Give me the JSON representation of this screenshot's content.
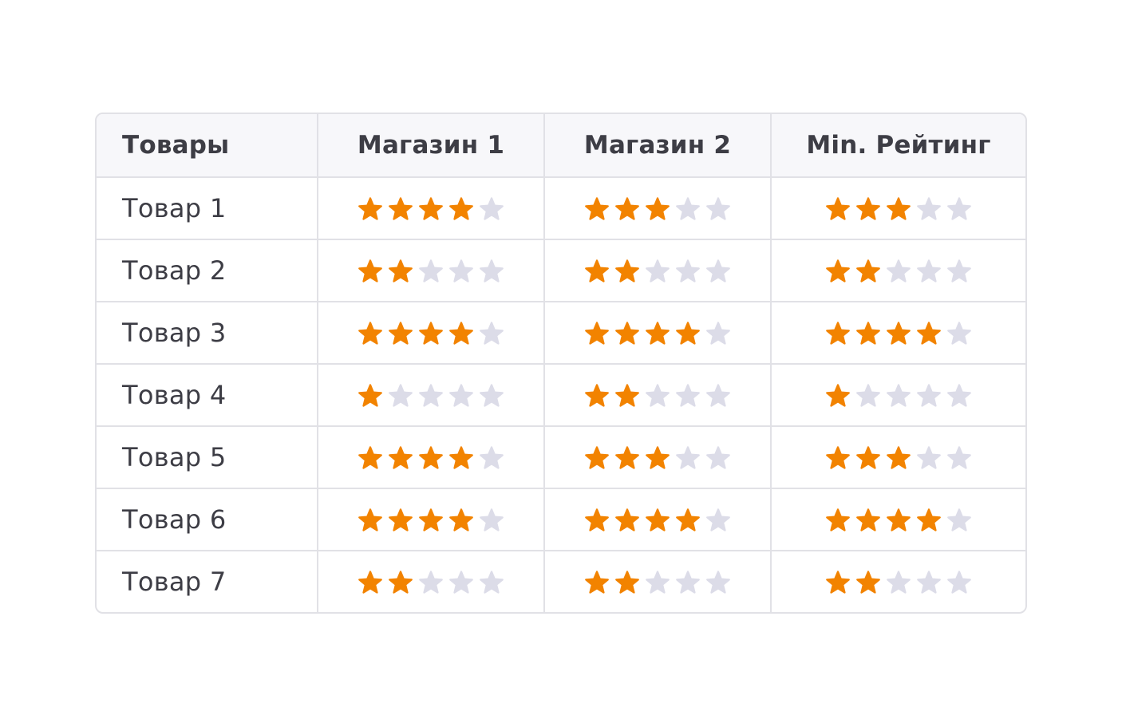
{
  "table": {
    "headers": [
      "Товары",
      "Магазин 1",
      "Магазин 2",
      "Min. Рейтинг"
    ],
    "max_stars": 5,
    "rows": [
      {
        "product": "Товар 1",
        "ratings": [
          4,
          3,
          3
        ]
      },
      {
        "product": "Товар 2",
        "ratings": [
          2,
          2,
          2
        ]
      },
      {
        "product": "Товар 3",
        "ratings": [
          4,
          4,
          4
        ]
      },
      {
        "product": "Товар 4",
        "ratings": [
          1,
          2,
          1
        ]
      },
      {
        "product": "Товар 5",
        "ratings": [
          4,
          3,
          3
        ]
      },
      {
        "product": "Товар 6",
        "ratings": [
          4,
          4,
          4
        ]
      },
      {
        "product": "Товар 7",
        "ratings": [
          2,
          2,
          2
        ]
      }
    ]
  },
  "colors": {
    "star_filled": "#f28300",
    "star_empty": "#dcdce8",
    "text": "#3d3d45",
    "border": "#e1e1e6",
    "header_bg": "#f7f7fa"
  },
  "icons": {
    "filled": "star-filled-icon",
    "empty": "star-empty-icon"
  }
}
